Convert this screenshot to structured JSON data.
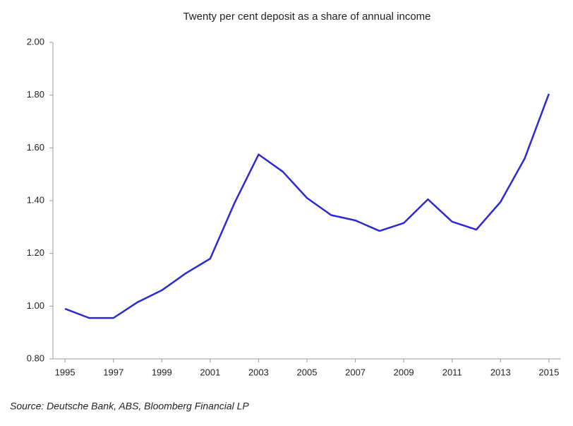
{
  "chart_data": {
    "type": "line",
    "title": "Twenty per cent deposit as a share of annual income",
    "x": [
      1995,
      1996,
      1997,
      1998,
      1999,
      2000,
      2001,
      2002,
      2003,
      2004,
      2005,
      2006,
      2007,
      2008,
      2009,
      2010,
      2011,
      2012,
      2013,
      2014,
      2015
    ],
    "values": [
      0.99,
      0.955,
      0.955,
      1.015,
      1.06,
      1.125,
      1.18,
      1.39,
      1.575,
      1.51,
      1.41,
      1.345,
      1.325,
      1.285,
      1.315,
      1.405,
      1.32,
      1.29,
      1.395,
      1.56,
      1.805
    ],
    "color": "#2a2ad0",
    "xlim": [
      1994.5,
      2015.5
    ],
    "xticks": [
      1995,
      1997,
      1999,
      2001,
      2003,
      2005,
      2007,
      2009,
      2011,
      2013,
      2015
    ],
    "ylim": [
      0.8,
      2.0
    ],
    "yticks": [
      {
        "value": 0.8,
        "label": "0.80"
      },
      {
        "value": 1.0,
        "label": "1.00"
      },
      {
        "value": 1.2,
        "label": "1.20"
      },
      {
        "value": 1.4,
        "label": "1.40"
      },
      {
        "value": 1.6,
        "label": "1.60"
      },
      {
        "value": 1.8,
        "label": "1.80"
      },
      {
        "value": 2.0,
        "label": "2.00"
      }
    ],
    "grid": false,
    "source": "Source: Deutsche Bank, ABS, Bloomberg Financial LP"
  }
}
